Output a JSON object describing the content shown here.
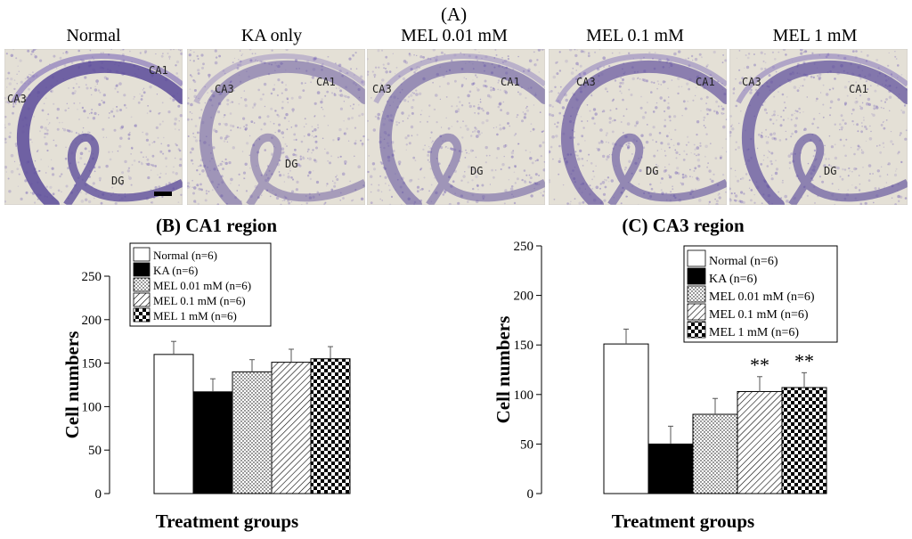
{
  "panel_a_label": "(A)",
  "images": [
    {
      "title": "Normal",
      "labels": {
        "ca1": "CA1",
        "ca3": "CA3",
        "dg": "DG"
      }
    },
    {
      "title": "KA only",
      "labels": {
        "ca1": "CA1",
        "ca3": "CA3",
        "dg": "DG"
      }
    },
    {
      "title": "MEL 0.01 mM",
      "labels": {
        "ca1": "CA1",
        "ca3": "CA3",
        "dg": "DG"
      }
    },
    {
      "title": "MEL 0.1 mM",
      "labels": {
        "ca1": "CA1",
        "ca3": "CA3",
        "dg": "DG"
      }
    },
    {
      "title": "MEL 1 mM",
      "labels": {
        "ca1": "CA1",
        "ca3": "CA3",
        "dg": "DG"
      }
    }
  ],
  "colors": {
    "stain": "#7a68b8",
    "stain_dark": "#5a4a9a",
    "tissue": "#e4e0d6"
  },
  "chart_data": [
    {
      "type": "bar",
      "title": "(B)  CA1  region",
      "xlabel": "Treatment groups",
      "ylabel": "Cell numbers",
      "ylim": [
        0,
        250
      ],
      "yticks": [
        0,
        50,
        100,
        150,
        200,
        250
      ],
      "legend": [
        "Normal (n=6)",
        "KA (n=6)",
        "MEL 0.01 mM (n=6)",
        "MEL 0.1 mM (n=6)",
        "MEL 1 mM (n=6)"
      ],
      "legend_position": "top-left",
      "values": [
        160,
        117,
        140,
        151,
        155
      ],
      "errors": [
        15,
        15,
        14,
        15,
        14
      ],
      "annotations": [
        "",
        "",
        "",
        "",
        ""
      ],
      "patterns": [
        "white",
        "black",
        "dots",
        "hatch",
        "checker"
      ]
    },
    {
      "type": "bar",
      "title": "(C)  CA3  region",
      "xlabel": "Treatment groups",
      "ylabel": "Cell numbers",
      "ylim": [
        0,
        250
      ],
      "yticks": [
        0,
        50,
        100,
        150,
        200,
        250
      ],
      "legend": [
        "Normal (n=6)",
        "KA (n=6)",
        "MEL 0.01 mM (n=6)",
        "MEL 0.1 mM (n=6)",
        "MEL 1 mM (n=6)"
      ],
      "legend_position": "top-right",
      "values": [
        151,
        50,
        80,
        103,
        107
      ],
      "errors": [
        15,
        18,
        16,
        15,
        15
      ],
      "annotations": [
        "",
        "",
        "",
        "**",
        "**"
      ],
      "patterns": [
        "white",
        "black",
        "dots",
        "hatch",
        "checker"
      ]
    }
  ]
}
